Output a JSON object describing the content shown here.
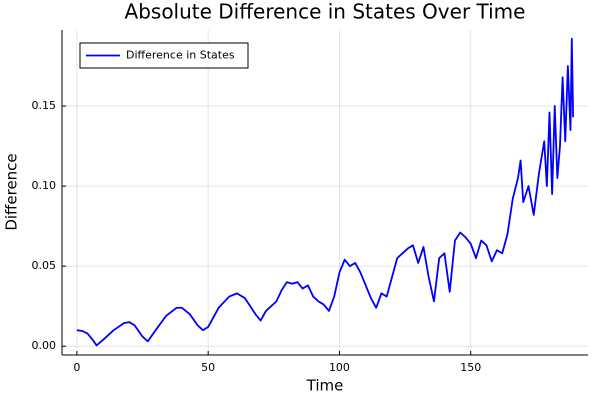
{
  "chart_data": {
    "type": "line",
    "title": "Absolute Difference in States Over Time",
    "x_label": "Time",
    "y_label": "Difference",
    "x": [
      0,
      2,
      4,
      6,
      7.5,
      10,
      14,
      18,
      20,
      22,
      25,
      27,
      30,
      34,
      38,
      40,
      43,
      46,
      48,
      50,
      54,
      58,
      61,
      64,
      66,
      68,
      70,
      72,
      74,
      76,
      78,
      80,
      82,
      84,
      86,
      88,
      90,
      92,
      94,
      96,
      98,
      100,
      102,
      104,
      106,
      108,
      110,
      112,
      114,
      116,
      118,
      120,
      122,
      124,
      126,
      128,
      130,
      132,
      134,
      136,
      138,
      140,
      142,
      144,
      146,
      148,
      150,
      152,
      154,
      156,
      158,
      160,
      162,
      164,
      166,
      168,
      169,
      170,
      172,
      174,
      176,
      178,
      179,
      180,
      181,
      182,
      183,
      184,
      185,
      186,
      187,
      188,
      188.5,
      189
    ],
    "series": [
      {
        "name": "Difference in States",
        "color": "#0000ff",
        "values": [
          0.01,
          0.0095,
          0.008,
          0.004,
          0.0005,
          0.004,
          0.01,
          0.0145,
          0.015,
          0.013,
          0.006,
          0.003,
          0.01,
          0.019,
          0.024,
          0.024,
          0.02,
          0.013,
          0.01,
          0.012,
          0.024,
          0.031,
          0.033,
          0.03,
          0.025,
          0.02,
          0.016,
          0.022,
          0.025,
          0.028,
          0.035,
          0.04,
          0.039,
          0.04,
          0.036,
          0.038,
          0.031,
          0.028,
          0.026,
          0.022,
          0.031,
          0.046,
          0.054,
          0.05,
          0.052,
          0.046,
          0.038,
          0.03,
          0.024,
          0.033,
          0.031,
          0.043,
          0.055,
          0.058,
          0.061,
          0.063,
          0.052,
          0.062,
          0.043,
          0.028,
          0.055,
          0.058,
          0.034,
          0.066,
          0.071,
          0.068,
          0.064,
          0.055,
          0.066,
          0.063,
          0.053,
          0.06,
          0.058,
          0.07,
          0.092,
          0.105,
          0.116,
          0.09,
          0.1,
          0.082,
          0.108,
          0.128,
          0.1,
          0.146,
          0.095,
          0.15,
          0.105,
          0.125,
          0.168,
          0.128,
          0.175,
          0.135,
          0.192,
          0.143
        ]
      }
    ],
    "xlim": [
      -5.67,
      194.67
    ],
    "ylim": [
      -0.0055,
      0.1975
    ],
    "xticks": [
      0,
      50,
      100,
      150
    ],
    "yticks": [
      {
        "value": 0,
        "label": "0.00"
      },
      {
        "value": 0.05,
        "label": "0.05"
      },
      {
        "value": 0.1,
        "label": "0.10"
      },
      {
        "value": 0.15,
        "label": "0.15"
      }
    ],
    "grid": true,
    "legend_position": "top-left"
  }
}
